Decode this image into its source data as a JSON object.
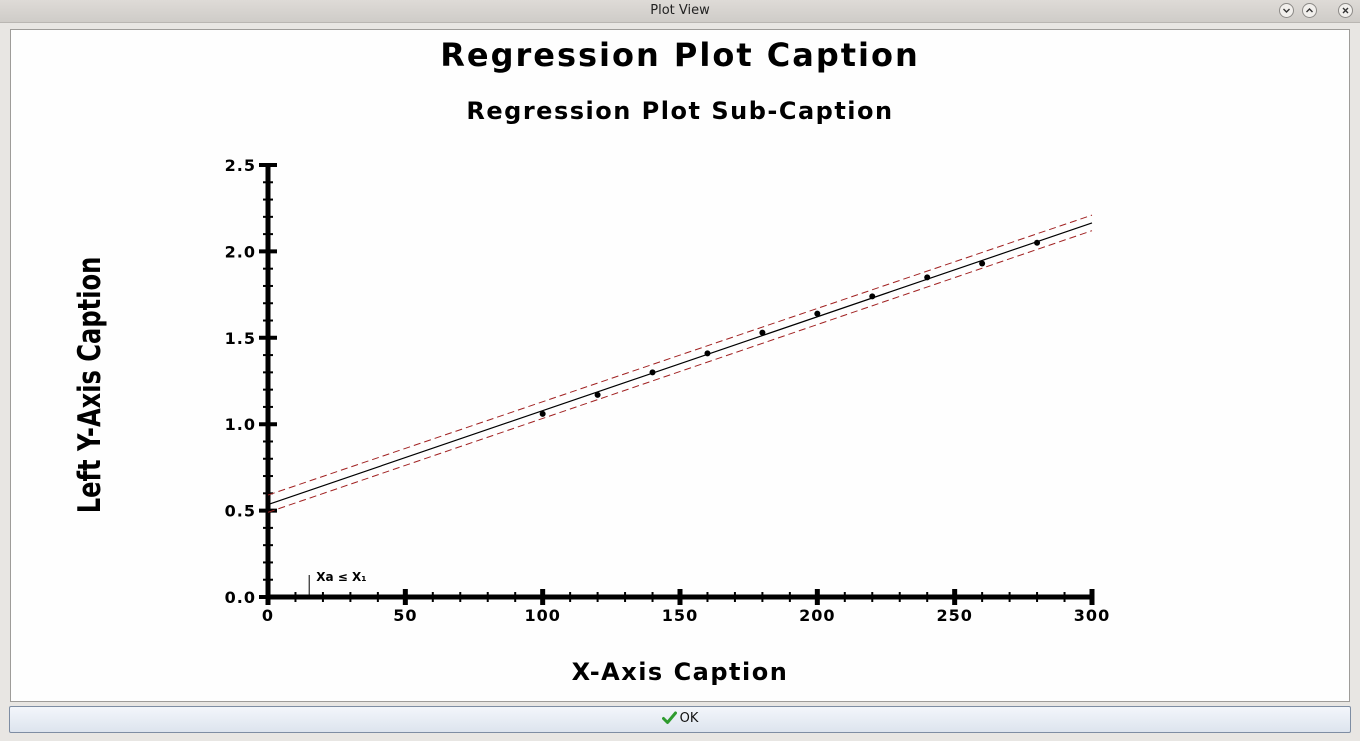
{
  "window": {
    "title": "Plot View"
  },
  "buttons": {
    "ok_label": "OK"
  },
  "colors": {
    "confidence_band": "#a02020",
    "regression_line": "#000000",
    "points": "#000000",
    "ok_check": "#2e9b2e"
  },
  "chart_data": {
    "type": "scatter",
    "title": "Regression Plot Caption",
    "subtitle": "Regression Plot Sub-Caption",
    "xlabel": "X-Axis Caption",
    "ylabel": "Left Y-Axis Caption",
    "xlim": [
      0,
      300
    ],
    "ylim": [
      0,
      2.5
    ],
    "x_ticks": [
      "0",
      "50",
      "100",
      "150",
      "200",
      "250",
      "300"
    ],
    "x_tick_values": [
      0,
      50,
      100,
      150,
      200,
      250,
      300
    ],
    "y_ticks": [
      "0.0",
      "0.5",
      "1.0",
      "1.5",
      "2.0",
      "2.5"
    ],
    "y_tick_values": [
      0,
      0.5,
      1.0,
      1.5,
      2.0,
      2.5
    ],
    "grid": false,
    "points": {
      "x": [
        100,
        120,
        140,
        160,
        180,
        200,
        220,
        240,
        260,
        280
      ],
      "y": [
        1.06,
        1.17,
        1.3,
        1.41,
        1.53,
        1.64,
        1.74,
        1.85,
        1.93,
        2.05
      ]
    },
    "regression_line": {
      "x": [
        0,
        300
      ],
      "y": [
        0.535,
        2.165
      ]
    },
    "confidence_upper": {
      "x": [
        0,
        300
      ],
      "y": [
        0.59,
        2.21
      ]
    },
    "confidence_lower": {
      "x": [
        0,
        300
      ],
      "y": [
        0.49,
        2.12
      ]
    },
    "annotation": {
      "text": "Xa ≤ X₁",
      "x": 15
    }
  }
}
